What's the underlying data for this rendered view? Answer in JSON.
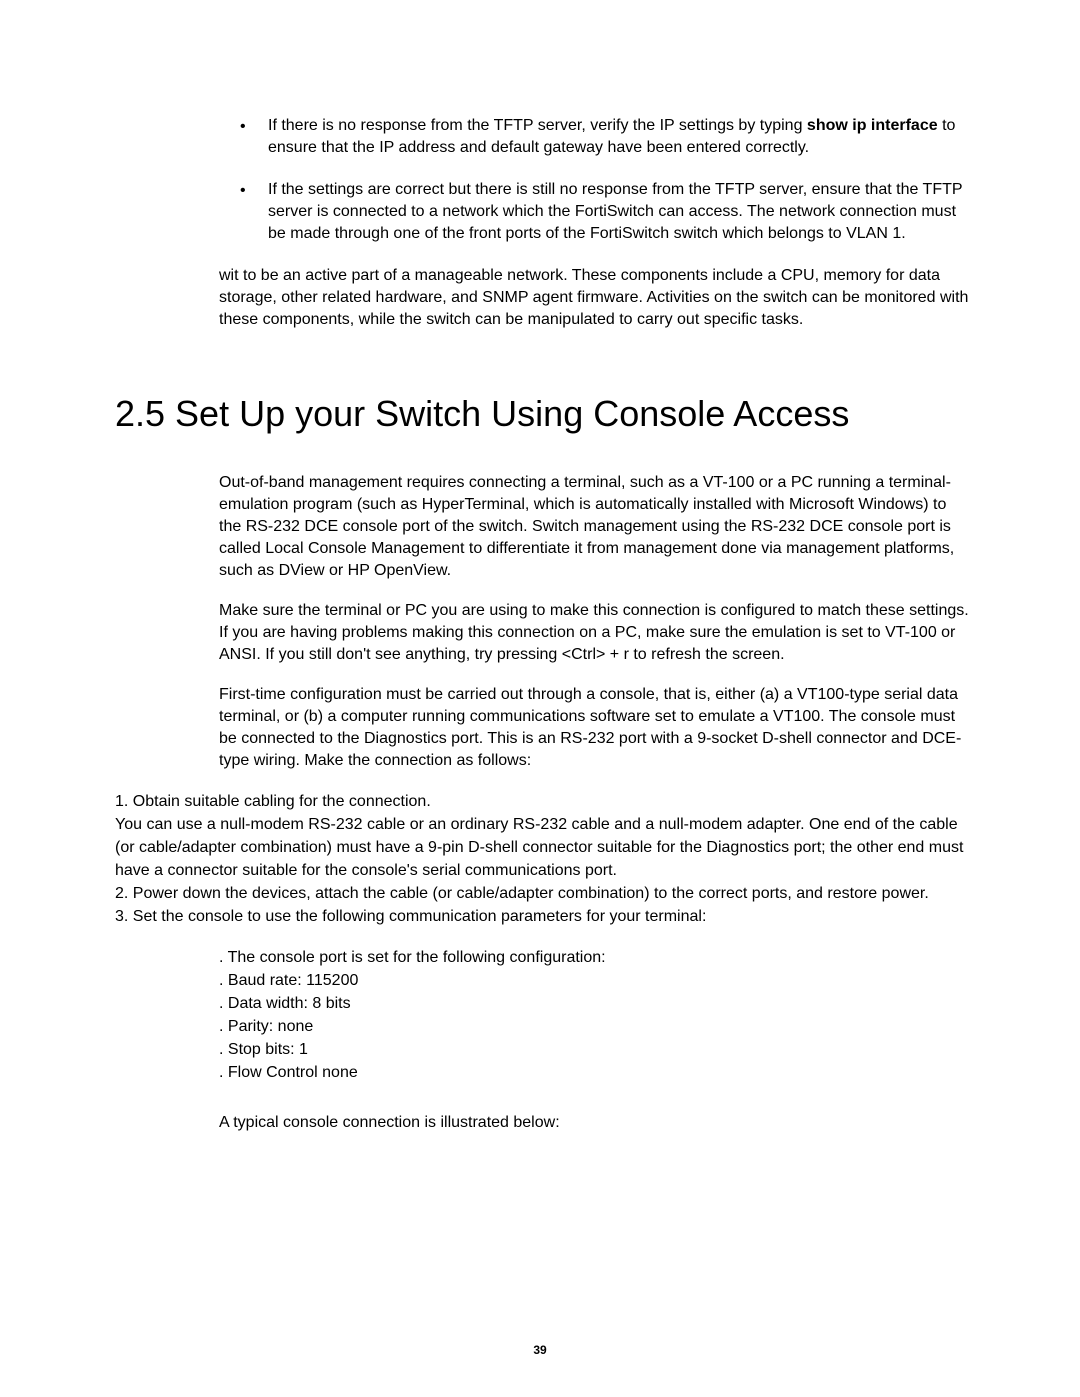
{
  "page": {
    "number": "39",
    "background_color": "#ffffff",
    "text_color": "#000000",
    "body_fontsize": 16,
    "heading_fontsize": 36,
    "pagenum_fontsize": 12
  },
  "bullets": [
    {
      "pre": "If there is no response from the TFTP server, verify the IP settings by typing ",
      "bold1": "show ip interface",
      "post": " to ensure that the IP address and default gateway have been entered correctly."
    },
    {
      "pre": "If the settings are correct but there is still no response from the TFTP server, ensure that the TFTP server is connected to a network which the FortiSwitch can access. The network connection must be made through one of the front ports of the FortiSwitch switch which belongs to VLAN 1.",
      "bold1": "",
      "post": ""
    }
  ],
  "paragraph_tail": "wit to be an active part of a manageable network. These components include a CPU, memory for data storage, other related hardware, and SNMP agent firmware. Activities on the switch can be monitored with these components, while the switch can be manipulated to carry out specific tasks.",
  "heading": "2.5 Set Up your Switch Using Console Access",
  "body_paragraphs": [
    "Out-of-band management requires connecting a terminal, such as a VT-100 or a PC running a terminal-emulation program (such as HyperTerminal, which is automatically installed with Microsoft Windows) to the RS-232 DCE console port of the switch. Switch management using the RS-232 DCE console port is called Local Console Management to differentiate it from management done via management platforms, such as DView or HP OpenView.",
    "Make sure the terminal or PC you are using to make this connection is configured to match these settings. If you are having problems making this connection on a PC, make sure the emulation is set to VT-100 or ANSI. If you still don't see anything, try pressing <Ctrl> + r to refresh the screen.",
    "First-time configuration must be carried out through a console, that is, either (a) a VT100-type serial data terminal, or (b) a computer running communications software set to emulate a VT100. The console must be connected to the Diagnostics port. This is an RS-232 port with a 9-socket D-shell connector and DCE-type wiring. Make the connection as follows:"
  ],
  "numbered": [
    "1. Obtain suitable cabling for the connection.",
    "You can use a null-modem RS-232 cable or an ordinary RS-232 cable and a null-modem adapter. One end of the cable (or cable/adapter combination) must have a 9-pin D-shell connector suitable for the Diagnostics port; the other end must have a connector suitable for the console's serial communications port.",
    "2. Power down the devices, attach the cable (or cable/adapter combination) to the correct ports, and restore power.",
    "3. Set the console to use the following communication parameters for your terminal:"
  ],
  "config_intro": ". The console port is set for the following configuration:",
  "config_items": [
    ". Baud rate: 115200",
    ". Data width: 8 bits",
    ". Parity: none",
    ". Stop bits: 1",
    ". Flow Control none"
  ],
  "closing": "A typical console connection is illustrated below:"
}
